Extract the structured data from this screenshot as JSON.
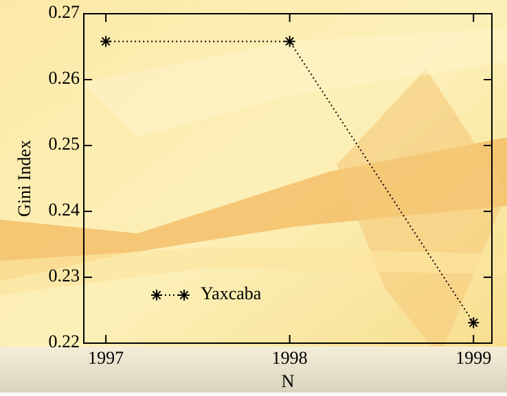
{
  "chart_data": {
    "type": "line",
    "x_label": "N",
    "y_label": "Gini Index",
    "x": [
      1997,
      1998,
      1999
    ],
    "series": [
      {
        "name": "Yaxcaba",
        "color": "#000000",
        "values": [
          0.2658,
          0.2658,
          0.2231
        ]
      }
    ],
    "xlim": [
      1996.88,
      1999.1
    ],
    "xticks": [
      1997,
      1998,
      1999
    ],
    "ylim": [
      0.22,
      0.27
    ],
    "yticks": [
      0.22,
      0.23,
      0.24,
      0.25,
      0.26,
      0.27
    ],
    "line_style": "dotted",
    "marker": "asterisk",
    "legend": "lower-left"
  }
}
